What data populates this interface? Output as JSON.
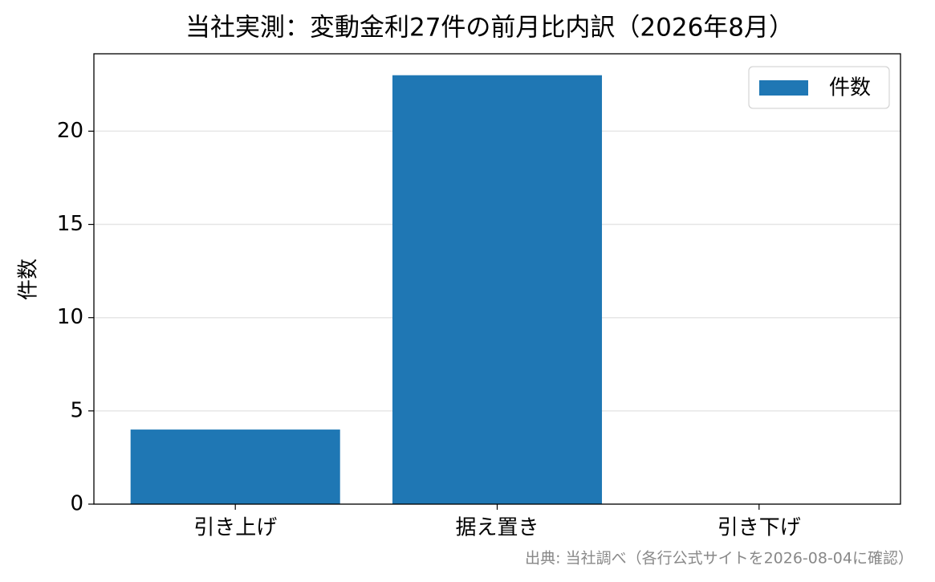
{
  "chart_data": {
    "type": "bar",
    "title": "当社実測：変動金利27件の前月比内訳（2026年8月）",
    "ylabel": "件数",
    "categories": [
      "引き上げ",
      "据え置き",
      "引き下げ"
    ],
    "series": [
      {
        "name": "件数",
        "color": "#1f77b4",
        "values": [
          4,
          23,
          0
        ]
      }
    ],
    "ylim": [
      0,
      24.15
    ],
    "yticks": [
      0,
      5,
      10,
      15,
      20
    ],
    "grid": true,
    "legend": "upper right",
    "source": "出典: 当社調べ（各行公式サイトを2026-08-04に確認）"
  }
}
